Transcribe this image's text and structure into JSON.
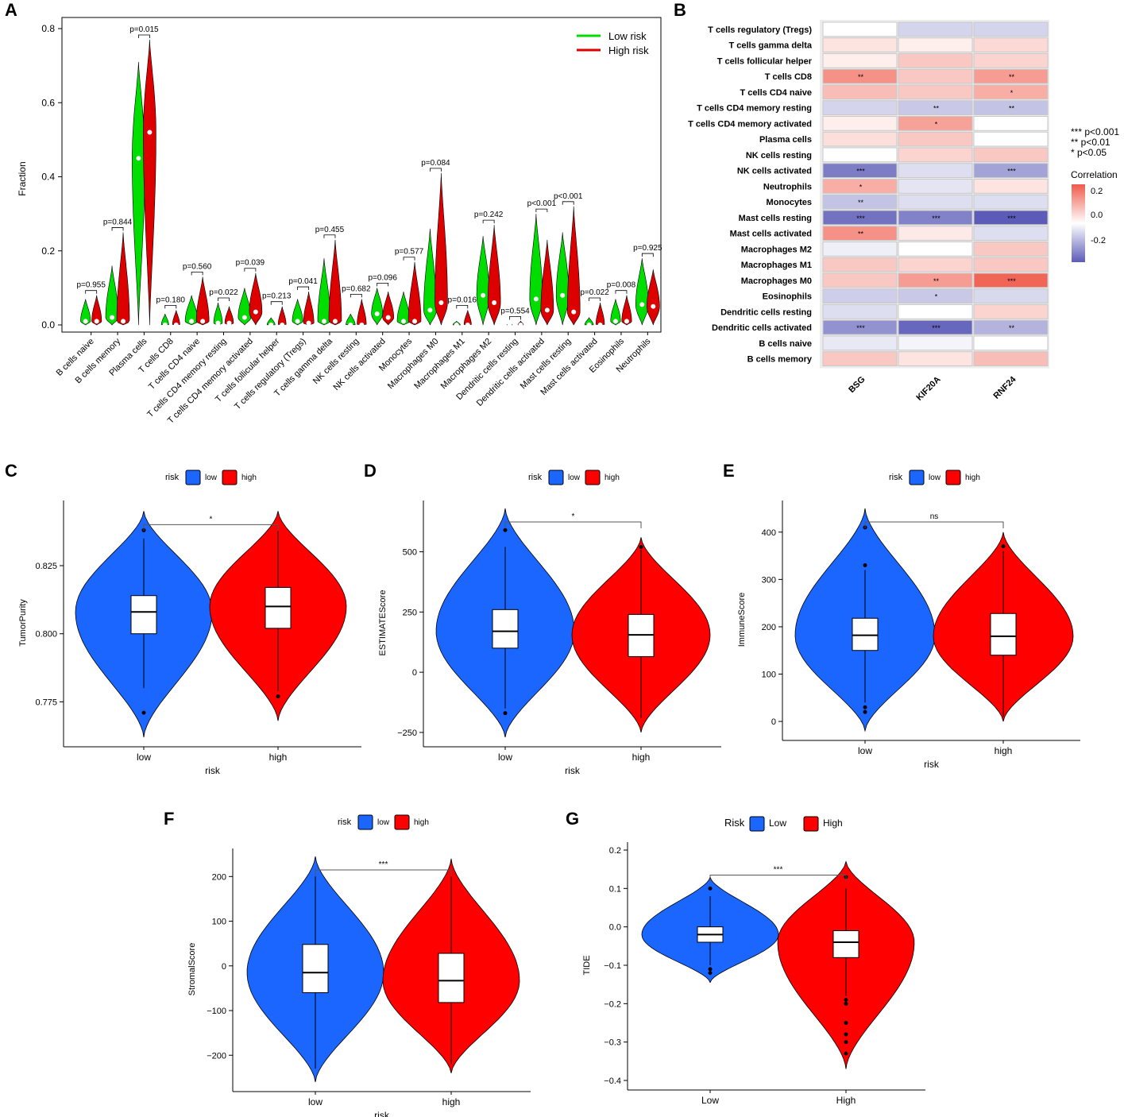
{
  "colors": {
    "low_green": "#00dd00",
    "high_red": "#dd0000",
    "low_blue": "#1a66ff",
    "high_red2": "#ff0000",
    "heat_pos": "#f05a4a",
    "heat_neg": "#5c5cb8",
    "heat_mid": "#ffffff"
  },
  "chart_data": [
    {
      "panel": "A",
      "type": "violin",
      "ylabel": "Fraction",
      "ylim": [
        0,
        0.8
      ],
      "yticks": [
        0.0,
        0.2,
        0.4,
        0.6,
        0.8
      ],
      "ytick_labels": [
        "0.0",
        "0.2",
        "0.4",
        "0.6",
        "0.8"
      ],
      "legend": [
        {
          "name": "Low risk",
          "color": "#00dd00"
        },
        {
          "name": "High risk",
          "color": "#dd0000"
        }
      ],
      "categories": [
        "B cells naive",
        "B cells memory",
        "Plasma cells",
        "T cells CD8",
        "T cells CD4 naive",
        "T cells CD4 memory resting",
        "T cells CD4 memory activated",
        "T cells follicular helper",
        "T cells regulatory (Tregs)",
        "T cells gamma delta",
        "NK cells resting",
        "NK cells activated",
        "Monocytes",
        "Macrophages M0",
        "Macrophages M1",
        "Macrophages M2",
        "Dendritic cells resting",
        "Dendritic cells activated",
        "Mast cells resting",
        "Mast cells activated",
        "Eosinophils",
        "Neutrophils"
      ],
      "pvalues": [
        "p=0.955",
        "p=0.844",
        "p=0.015",
        "p=0.180",
        "p=0.560",
        "p=0.022",
        "p=0.039",
        "p=0.213",
        "p=0.041",
        "p=0.455",
        "p=0.682",
        "p=0.096",
        "p=0.577",
        "p=0.084",
        "p=0.016",
        "p=0.242",
        "p=0.554",
        "p<0.001",
        "p<0.001",
        "p=0.022",
        "p=0.008",
        "p=0.925"
      ],
      "low_max": [
        0.07,
        0.16,
        0.71,
        0.03,
        0.08,
        0.06,
        0.1,
        0.02,
        0.07,
        0.18,
        0.03,
        0.1,
        0.09,
        0.26,
        0.01,
        0.24,
        0.005,
        0.3,
        0.25,
        0.02,
        0.07,
        0.18
      ],
      "high_max": [
        0.08,
        0.25,
        0.77,
        0.04,
        0.13,
        0.05,
        0.14,
        0.05,
        0.09,
        0.23,
        0.07,
        0.09,
        0.17,
        0.41,
        0.04,
        0.27,
        0.01,
        0.23,
        0.32,
        0.06,
        0.08,
        0.15
      ],
      "low_med": [
        0.01,
        0.02,
        0.45,
        0.0,
        0.01,
        0.005,
        0.02,
        0.0,
        0.01,
        0.01,
        0.0,
        0.03,
        0.01,
        0.04,
        0.0,
        0.08,
        0.0,
        0.07,
        0.08,
        0.0,
        0.01,
        0.055
      ],
      "high_med": [
        0.01,
        0.01,
        0.52,
        0.0,
        0.01,
        0.005,
        0.035,
        0.0,
        0.005,
        0.01,
        0.0,
        0.02,
        0.01,
        0.06,
        0.0,
        0.06,
        0.0,
        0.04,
        0.035,
        0.0,
        0.01,
        0.05
      ]
    },
    {
      "panel": "B",
      "type": "heatmap",
      "rows": [
        "T cells regulatory (Tregs)",
        "T cells gamma delta",
        "T cells follicular helper",
        "T cells CD8",
        "T cells CD4 naive",
        "T cells CD4 memory resting",
        "T cells CD4 memory activated",
        "Plasma cells",
        "NK cells resting",
        "NK cells activated",
        "Neutrophils",
        "Monocytes",
        "Mast cells resting",
        "Mast cells activated",
        "Macrophages M2",
        "Macrophages M1",
        "Macrophages M0",
        "Eosinophils",
        "Dendritic cells resting",
        "Dendritic cells activated",
        "B cells naive",
        "B cells memory"
      ],
      "columns": [
        "BSG",
        "KIF20A",
        "RNF24"
      ],
      "values": [
        [
          0.0,
          -0.08,
          -0.08
        ],
        [
          0.05,
          0.03,
          0.07
        ],
        [
          0.03,
          0.1,
          0.08
        ],
        [
          0.2,
          0.1,
          0.18
        ],
        [
          0.12,
          0.1,
          0.15
        ],
        [
          -0.08,
          -0.1,
          -0.11
        ],
        [
          0.03,
          0.17,
          0.0
        ],
        [
          0.06,
          0.1,
          0.0
        ],
        [
          0.0,
          0.08,
          0.1
        ],
        [
          -0.24,
          -0.06,
          -0.17
        ],
        [
          0.15,
          -0.05,
          0.05
        ],
        [
          -0.11,
          -0.06,
          -0.06
        ],
        [
          -0.26,
          -0.23,
          -0.3
        ],
        [
          0.2,
          0.04,
          -0.06
        ],
        [
          -0.03,
          0.0,
          0.1
        ],
        [
          0.1,
          0.08,
          0.1
        ],
        [
          0.1,
          0.18,
          0.28
        ],
        [
          -0.09,
          -0.1,
          -0.07
        ],
        [
          -0.06,
          0.0,
          0.08
        ],
        [
          -0.2,
          -0.28,
          -0.14
        ],
        [
          -0.04,
          -0.02,
          0.0
        ],
        [
          0.1,
          0.05,
          0.12
        ]
      ],
      "stars": [
        [
          "",
          "",
          ""
        ],
        [
          "",
          "",
          ""
        ],
        [
          "",
          "",
          ""
        ],
        [
          "**",
          "",
          "**"
        ],
        [
          "",
          "",
          "*"
        ],
        [
          "",
          "**",
          "**"
        ],
        [
          "",
          "*",
          ""
        ],
        [
          "",
          "",
          ""
        ],
        [
          "",
          "",
          ""
        ],
        [
          "***",
          "",
          "***"
        ],
        [
          "*",
          "",
          ""
        ],
        [
          "**",
          "",
          ""
        ],
        [
          "***",
          "***",
          "***"
        ],
        [
          "**",
          "",
          ""
        ],
        [
          "",
          "",
          ""
        ],
        [
          "",
          "",
          ""
        ],
        [
          "",
          "**",
          "***"
        ],
        [
          "",
          "*",
          ""
        ],
        [
          "",
          "",
          ""
        ],
        [
          "***",
          "***",
          "**"
        ],
        [
          "",
          "",
          ""
        ],
        [
          "",
          "",
          ""
        ]
      ],
      "sig_legend": [
        "***  p<0.001",
        "**  p<0.01",
        "*  p<0.05"
      ],
      "colorbar_title": "Correlation",
      "colorbar_ticks": [
        "0.2",
        "0.0",
        "-0.2"
      ]
    },
    {
      "panel": "C",
      "type": "violin",
      "legend_title": "risk",
      "groups": [
        "low",
        "high"
      ],
      "xlabel": "risk",
      "ylabel": "TumorPurity",
      "ylim": [
        0.762,
        0.846
      ],
      "yticks": [
        0.775,
        0.8,
        0.825
      ],
      "ytick_labels": [
        "0.775",
        "0.800",
        "0.825"
      ],
      "sig": "*",
      "low": {
        "min": 0.762,
        "max": 0.845,
        "q1": 0.8,
        "med": 0.808,
        "q3": 0.814,
        "wlo": 0.78,
        "whi": 0.835,
        "outliers": [
          0.838,
          0.771
        ]
      },
      "high": {
        "min": 0.768,
        "max": 0.845,
        "q1": 0.802,
        "med": 0.81,
        "q3": 0.817,
        "wlo": 0.779,
        "whi": 0.838,
        "outliers": [
          0.777
        ]
      }
    },
    {
      "panel": "D",
      "type": "violin",
      "legend_title": "risk",
      "groups": [
        "low",
        "high"
      ],
      "xlabel": "risk",
      "ylabel": "ESTIMATEScore",
      "ylim": [
        -270,
        680
      ],
      "yticks": [
        -250,
        0,
        250,
        500
      ],
      "ytick_labels": [
        "−250",
        "0",
        "250",
        "500"
      ],
      "sig": "*",
      "low": {
        "min": -270,
        "max": 680,
        "q1": 100,
        "med": 170,
        "q3": 260,
        "wlo": -150,
        "whi": 520,
        "outliers": [
          590,
          -170
        ]
      },
      "high": {
        "min": -250,
        "max": 560,
        "q1": 65,
        "med": 155,
        "q3": 240,
        "wlo": -190,
        "whi": 510,
        "outliers": [
          520
        ]
      }
    },
    {
      "panel": "E",
      "type": "violin",
      "legend_title": "risk",
      "groups": [
        "low",
        "high"
      ],
      "xlabel": "risk",
      "ylabel": "ImmuneScore",
      "ylim": [
        -20,
        450
      ],
      "yticks": [
        0,
        100,
        200,
        300,
        400
      ],
      "ytick_labels": [
        "0",
        "100",
        "200",
        "300",
        "400"
      ],
      "sig": "ns",
      "low": {
        "min": -20,
        "max": 450,
        "q1": 150,
        "med": 182,
        "q3": 218,
        "wlo": 40,
        "whi": 320,
        "outliers": [
          410,
          330,
          30,
          20
        ]
      },
      "high": {
        "min": 0,
        "max": 400,
        "q1": 140,
        "med": 180,
        "q3": 228,
        "wlo": 10,
        "whi": 360,
        "outliers": [
          370
        ]
      }
    },
    {
      "panel": "F",
      "type": "violin",
      "legend_title": "risk",
      "groups": [
        "low",
        "high"
      ],
      "xlabel": "risk",
      "ylabel": "StromalScore",
      "ylim": [
        -260,
        245
      ],
      "yticks": [
        -200,
        -100,
        0,
        100,
        200
      ],
      "ytick_labels": [
        "−200",
        "−100",
        "0",
        "100",
        "200"
      ],
      "sig": "***",
      "low": {
        "min": -260,
        "max": 245,
        "q1": -60,
        "med": -15,
        "q3": 48,
        "wlo": -230,
        "whi": 200,
        "outliers": []
      },
      "high": {
        "min": -240,
        "max": 240,
        "q1": -82,
        "med": -33,
        "q3": 28,
        "wlo": -220,
        "whi": 200,
        "outliers": []
      }
    },
    {
      "panel": "G",
      "type": "violin",
      "legend_title": "Risk",
      "groups": [
        "Low",
        "High"
      ],
      "xlabel": "",
      "ylabel": "TIDE",
      "ylim": [
        -0.4,
        0.2
      ],
      "yticks": [
        -0.4,
        -0.3,
        -0.2,
        -0.1,
        0.0,
        0.1,
        0.2
      ],
      "ytick_labels": [
        "−0.4",
        "−0.3",
        "−0.2",
        "−0.1",
        "0.0",
        "0.1",
        "0.2"
      ],
      "sig": "***",
      "low": {
        "min": -0.145,
        "max": 0.13,
        "q1": -0.04,
        "med": -0.02,
        "q3": 0.0,
        "wlo": -0.1,
        "whi": 0.08,
        "outliers": [
          0.1,
          -0.11,
          -0.12
        ]
      },
      "high": {
        "min": -0.37,
        "max": 0.17,
        "q1": -0.08,
        "med": -0.04,
        "q3": -0.01,
        "wlo": -0.18,
        "whi": 0.1,
        "outliers": [
          0.13,
          -0.19,
          -0.2,
          -0.25,
          -0.28,
          -0.3,
          -0.33
        ]
      }
    }
  ]
}
